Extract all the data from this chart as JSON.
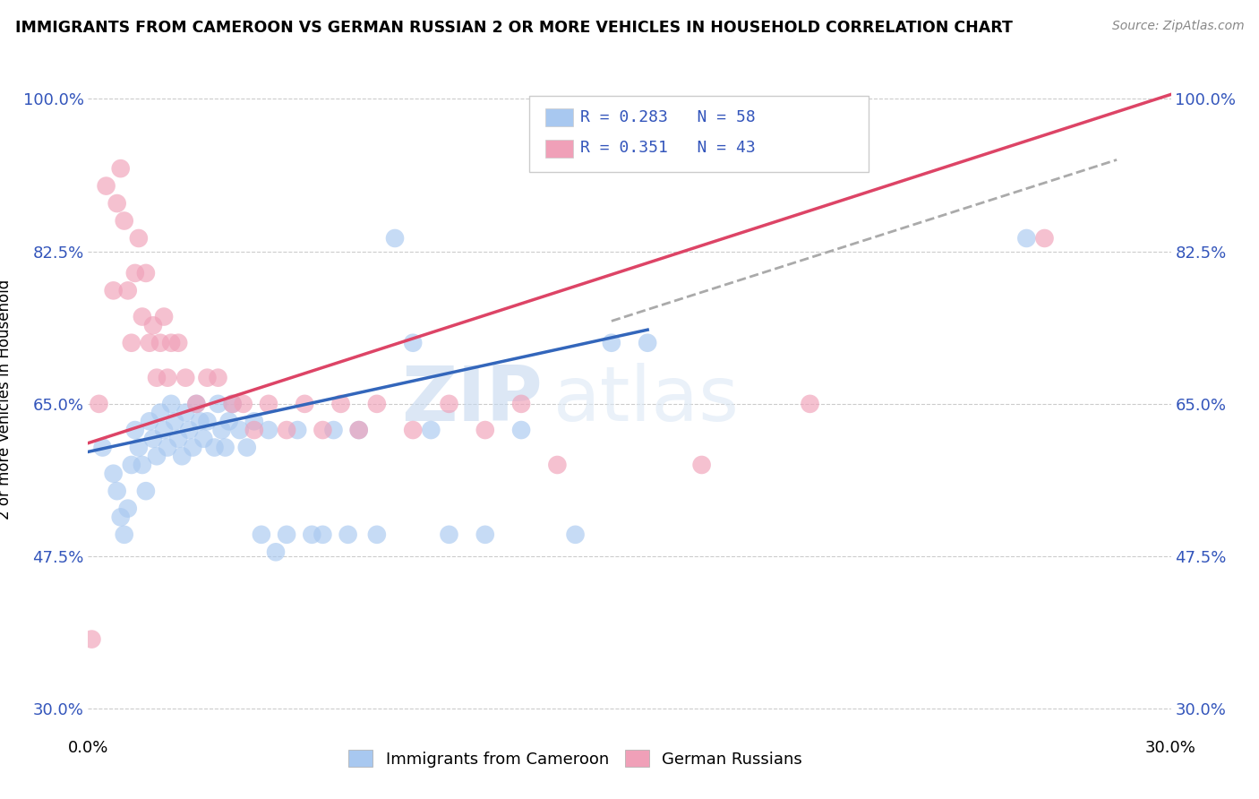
{
  "title": "IMMIGRANTS FROM CAMEROON VS GERMAN RUSSIAN 2 OR MORE VEHICLES IN HOUSEHOLD CORRELATION CHART",
  "source": "Source: ZipAtlas.com",
  "ylabel": "2 or more Vehicles in Household",
  "yticks": [
    "30.0%",
    "47.5%",
    "65.0%",
    "82.5%",
    "100.0%"
  ],
  "ytick_vals": [
    0.3,
    0.475,
    0.65,
    0.825,
    1.0
  ],
  "xlim": [
    0.0,
    0.3
  ],
  "ylim": [
    0.27,
    1.04
  ],
  "legend_blue_label": "R = 0.283   N = 58",
  "legend_pink_label": "R = 0.351   N = 43",
  "legend_group1": "Immigrants from Cameroon",
  "legend_group2": "German Russians",
  "blue_color": "#a8c8f0",
  "pink_color": "#f0a0b8",
  "blue_line_color": "#3366bb",
  "pink_line_color": "#dd4466",
  "blue_line_x": [
    0.0,
    0.155
  ],
  "blue_line_y": [
    0.595,
    0.735
  ],
  "pink_line_x": [
    0.0,
    0.3
  ],
  "pink_line_y": [
    0.605,
    1.005
  ],
  "dash_line_x": [
    0.145,
    0.285
  ],
  "dash_line_y": [
    0.745,
    0.93
  ],
  "blue_scatter_x": [
    0.004,
    0.007,
    0.008,
    0.009,
    0.01,
    0.011,
    0.012,
    0.013,
    0.014,
    0.015,
    0.016,
    0.017,
    0.018,
    0.019,
    0.02,
    0.021,
    0.022,
    0.023,
    0.024,
    0.025,
    0.026,
    0.027,
    0.028,
    0.029,
    0.03,
    0.031,
    0.032,
    0.033,
    0.035,
    0.036,
    0.037,
    0.038,
    0.039,
    0.04,
    0.042,
    0.044,
    0.046,
    0.048,
    0.05,
    0.052,
    0.055,
    0.058,
    0.062,
    0.065,
    0.068,
    0.072,
    0.075,
    0.08,
    0.085,
    0.09,
    0.095,
    0.1,
    0.11,
    0.12,
    0.135,
    0.145,
    0.155,
    0.26
  ],
  "blue_scatter_y": [
    0.6,
    0.57,
    0.55,
    0.52,
    0.5,
    0.53,
    0.58,
    0.62,
    0.6,
    0.58,
    0.55,
    0.63,
    0.61,
    0.59,
    0.64,
    0.62,
    0.6,
    0.65,
    0.63,
    0.61,
    0.59,
    0.64,
    0.62,
    0.6,
    0.65,
    0.63,
    0.61,
    0.63,
    0.6,
    0.65,
    0.62,
    0.6,
    0.63,
    0.65,
    0.62,
    0.6,
    0.63,
    0.5,
    0.62,
    0.48,
    0.5,
    0.62,
    0.5,
    0.5,
    0.62,
    0.5,
    0.62,
    0.5,
    0.84,
    0.72,
    0.62,
    0.5,
    0.5,
    0.62,
    0.5,
    0.72,
    0.72,
    0.84
  ],
  "pink_scatter_x": [
    0.001,
    0.003,
    0.005,
    0.007,
    0.008,
    0.009,
    0.01,
    0.011,
    0.012,
    0.013,
    0.014,
    0.015,
    0.016,
    0.017,
    0.018,
    0.019,
    0.02,
    0.021,
    0.022,
    0.023,
    0.025,
    0.027,
    0.03,
    0.033,
    0.036,
    0.04,
    0.043,
    0.046,
    0.05,
    0.055,
    0.06,
    0.065,
    0.07,
    0.075,
    0.08,
    0.09,
    0.1,
    0.11,
    0.12,
    0.13,
    0.17,
    0.2,
    0.265
  ],
  "pink_scatter_y": [
    0.38,
    0.65,
    0.9,
    0.78,
    0.88,
    0.92,
    0.86,
    0.78,
    0.72,
    0.8,
    0.84,
    0.75,
    0.8,
    0.72,
    0.74,
    0.68,
    0.72,
    0.75,
    0.68,
    0.72,
    0.72,
    0.68,
    0.65,
    0.68,
    0.68,
    0.65,
    0.65,
    0.62,
    0.65,
    0.62,
    0.65,
    0.62,
    0.65,
    0.62,
    0.65,
    0.62,
    0.65,
    0.62,
    0.65,
    0.58,
    0.58,
    0.65,
    0.84
  ]
}
